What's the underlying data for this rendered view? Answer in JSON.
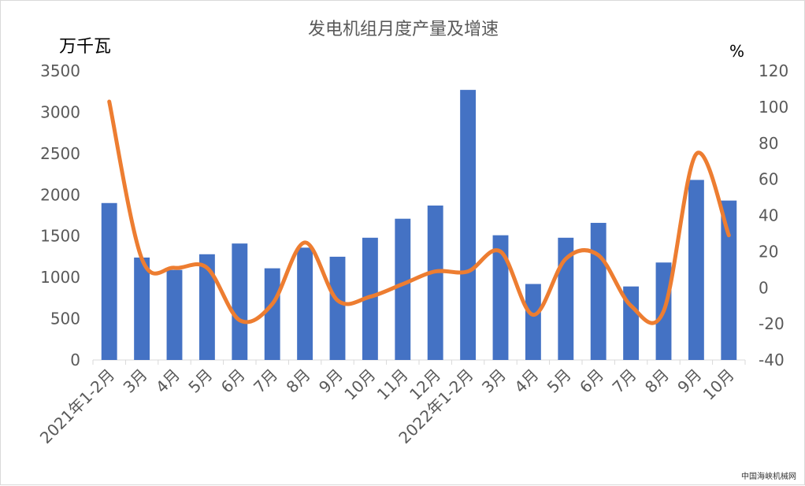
{
  "chart_data": {
    "type": "bar",
    "title": "发电机组月度产量及增速",
    "left_unit": "万千瓦",
    "right_unit": "%",
    "categories": [
      "2021年1-2月",
      "3月",
      "4月",
      "5月",
      "6月",
      "7月",
      "8月",
      "9月",
      "10月",
      "11月",
      "12月",
      "2022年1-2月",
      "3月",
      "4月",
      "5月",
      "6月",
      "7月",
      "8月",
      "9月",
      "10月"
    ],
    "series": [
      {
        "type": "bar",
        "axis": "left",
        "color": "#4472c4",
        "values": [
          1900,
          1240,
          1090,
          1280,
          1410,
          1110,
          1360,
          1250,
          1480,
          1710,
          1870,
          3270,
          1510,
          920,
          1480,
          1660,
          890,
          1180,
          2180,
          1930
        ]
      },
      {
        "type": "line",
        "axis": "right",
        "color": "#ed7d31",
        "smooth": true,
        "values": [
          103,
          16,
          11,
          11,
          -18,
          -9,
          25,
          -7,
          -5,
          2,
          9,
          9,
          20,
          -15,
          16,
          18,
          -10,
          -13,
          74,
          29
        ]
      }
    ],
    "ylim_left": [
      0,
      3500
    ],
    "yticks_left": [
      0,
      500,
      1000,
      1500,
      2000,
      2500,
      3000,
      3500
    ],
    "ylim_right": [
      -40,
      120
    ],
    "yticks_right": [
      -40,
      -20,
      0,
      20,
      40,
      60,
      80,
      100,
      120
    ],
    "grid": false,
    "legend": "none"
  },
  "watermark": "中国海峡机械网"
}
